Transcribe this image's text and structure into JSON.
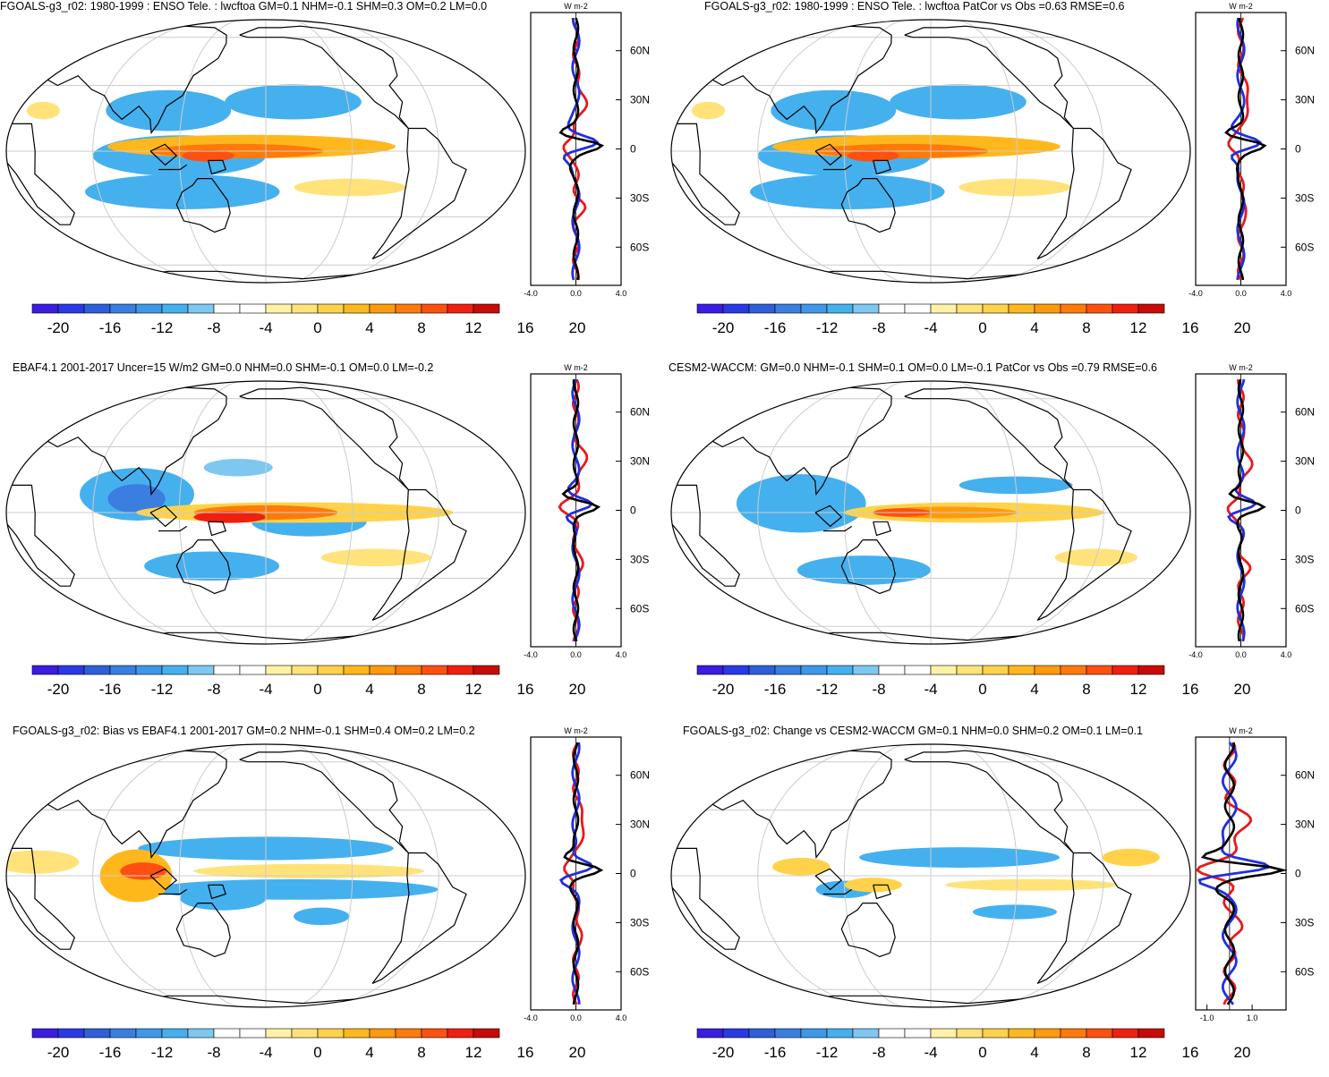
{
  "colors": {
    "palette": [
      "#3a1de0",
      "#2a39e6",
      "#2f5fd8",
      "#3a7ee0",
      "#3f97e8",
      "#45b0ee",
      "#7ec8f0",
      "#ffffff",
      "#ffffff",
      "#fff2a6",
      "#ffe37a",
      "#ffd24a",
      "#ffb81c",
      "#ff9a0a",
      "#ff7a0a",
      "#ff5010",
      "#f02010",
      "#c80a08"
    ],
    "model_line": "#e8191b",
    "obs_line": "#1f2fe0",
    "other_line": "#000000",
    "grid": "#cccccc"
  },
  "colorbar": {
    "labels": [
      "-20",
      "-16",
      "-12",
      "-8",
      "-4",
      "0",
      "4",
      "8",
      "12",
      "16",
      "20"
    ]
  },
  "zonal_units": "W m-2",
  "lat_labels": [
    "60N",
    "30N",
    "0",
    "30S",
    "60S"
  ],
  "panels": [
    {
      "id": "p1",
      "title": "FGOALS-g3_r02: 1980-1999 : ENSO Tele. : lwcftoa GM=0.1 NHM=-0.1 SHM=0.3 OM=0.2 LM=0.0",
      "x_ticks": [
        "-4.0",
        "0.0",
        "4.0"
      ],
      "xlim": [
        -4,
        4
      ]
    },
    {
      "id": "p2",
      "title": "FGOALS-g3_r02: 1980-1999 : ENSO Tele. : lwcftoa PatCor vs Obs =0.63 RMSE=0.6",
      "x_ticks": [
        "-4.0",
        "0.0",
        "4.0"
      ],
      "xlim": [
        -4,
        4
      ]
    },
    {
      "id": "p3",
      "title": "EBAF4.1 2001-2017 Uncer=15 W/m2 GM=0.0 NHM=0.0 SHM=-0.1 OM=0.0 LM=-0.2",
      "x_ticks": [
        "-4.0",
        "0.0",
        "4.0"
      ],
      "xlim": [
        -4,
        4
      ]
    },
    {
      "id": "p4",
      "title": "CESM2-WACCM: GM=0.0 NHM=-0.1 SHM=0.1 OM=0.0 LM=-0.1 PatCor vs Obs =0.79 RMSE=0.6",
      "x_ticks": [
        "-4.0",
        "0.0",
        "4.0"
      ],
      "xlim": [
        -4,
        4
      ]
    },
    {
      "id": "p5",
      "title": "FGOALS-g3_r02: Bias vs EBAF4.1 2001-2017 GM=0.2 NHM=-0.1 SHM=0.4 OM=0.2 LM=0.2",
      "x_ticks": [
        "-4.0",
        "0.0",
        "4.0"
      ],
      "xlim": [
        -4,
        4
      ]
    },
    {
      "id": "p6",
      "title": "FGOALS-g3_r02: Change vs CESM2-WACCM GM=0.1 NHM=0.0 SHM=0.2 OM=0.1 LM=0.1",
      "x_ticks": [
        "-1.0",
        "1.0"
      ],
      "xlim": [
        -1.5,
        2.5
      ]
    }
  ]
}
